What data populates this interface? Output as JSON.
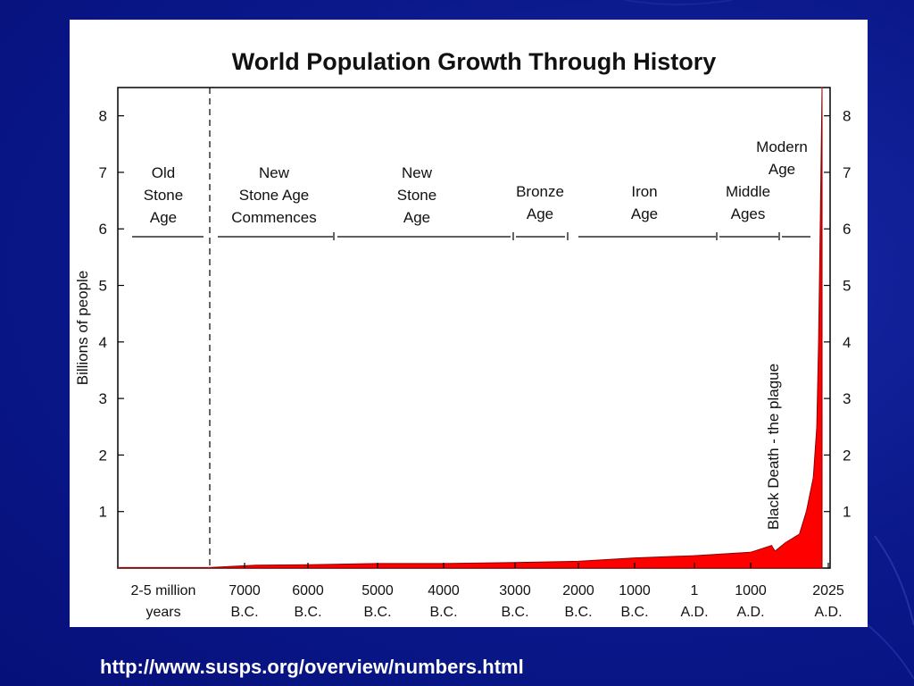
{
  "source_url": "http://www.susps.org/overview/numbers.html",
  "chart_data": {
    "type": "area",
    "title": "World Population Growth Through History",
    "ylabel": "Billions of people",
    "ylim": [
      0,
      8.5
    ],
    "y_ticks": [
      1,
      2,
      3,
      4,
      5,
      6,
      7,
      8
    ],
    "x_ticks": [
      {
        "line1": "2-5 million",
        "line2": "years"
      },
      {
        "line1": "7000",
        "line2": "B.C."
      },
      {
        "line1": "6000",
        "line2": "B.C."
      },
      {
        "line1": "5000",
        "line2": "B.C."
      },
      {
        "line1": "4000",
        "line2": "B.C."
      },
      {
        "line1": "3000",
        "line2": "B.C."
      },
      {
        "line1": "2000",
        "line2": "B.C."
      },
      {
        "line1": "1000",
        "line2": "B.C."
      },
      {
        "line1": "1",
        "line2": "A.D."
      },
      {
        "line1": "1000",
        "line2": "A.D."
      },
      {
        "line1": "2025",
        "line2": "A.D."
      }
    ],
    "eras": [
      {
        "label": [
          "Old",
          "Stone",
          "Age"
        ]
      },
      {
        "label": [
          "New",
          "Stone Age",
          "Commences"
        ]
      },
      {
        "label": [
          "New",
          "Stone",
          "Age"
        ]
      },
      {
        "label": [
          "Bronze",
          "Age"
        ]
      },
      {
        "label": [
          "Iron",
          "Age"
        ]
      },
      {
        "label": [
          "Middle",
          "Ages"
        ]
      },
      {
        "label": [
          "Modern",
          "Age"
        ]
      }
    ],
    "annotation": "Black Death - the plague",
    "series": [
      {
        "color": "#ff0000",
        "points": [
          [
            "2-5 million years",
            0.01
          ],
          [
            "8000 B.C.",
            0.01
          ],
          [
            "7000 B.C.",
            0.05
          ],
          [
            "6000 B.C.",
            0.06
          ],
          [
            "5000 B.C.",
            0.08
          ],
          [
            "4000 B.C.",
            0.08
          ],
          [
            "3000 B.C.",
            0.1
          ],
          [
            "2000 B.C.",
            0.12
          ],
          [
            "1000 B.C.",
            0.18
          ],
          [
            "1 A.D.",
            0.22
          ],
          [
            "1000 A.D.",
            0.28
          ],
          [
            "1300 A.D.",
            0.4
          ],
          [
            "1350 A.D.",
            0.3
          ],
          [
            "1500 A.D.",
            0.45
          ],
          [
            "1700 A.D.",
            0.6
          ],
          [
            "1800 A.D.",
            1.0
          ],
          [
            "1900 A.D.",
            1.6
          ],
          [
            "1950 A.D.",
            2.5
          ],
          [
            "1975 A.D.",
            4.0
          ],
          [
            "2000 A.D.",
            6.1
          ],
          [
            "2025 A.D.",
            8.5
          ]
        ]
      }
    ],
    "grid": false
  }
}
